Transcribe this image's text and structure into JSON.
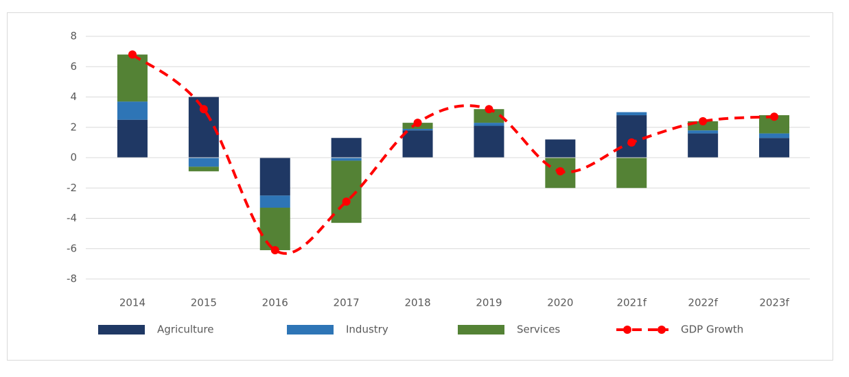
{
  "chart_data": {
    "type": "bar",
    "categories": [
      "2014",
      "2015",
      "2016",
      "2017",
      "2018",
      "2019",
      "2020",
      "2021f",
      "2022f",
      "2023f"
    ],
    "series": [
      {
        "name": "Agriculture",
        "color": "#1f3864",
        "values": [
          2.5,
          4.0,
          -2.5,
          1.3,
          1.8,
          2.1,
          1.2,
          2.8,
          1.6,
          1.3
        ]
      },
      {
        "name": "Industry",
        "color": "#2e75b6",
        "values": [
          1.2,
          -0.6,
          -0.8,
          -0.2,
          0.1,
          0.2,
          0,
          0.2,
          0.2,
          0.3
        ]
      },
      {
        "name": "Services",
        "color": "#548235",
        "values": [
          3.1,
          -0.3,
          -2.8,
          -4.1,
          0.4,
          0.9,
          -2.0,
          -2.0,
          0.6,
          1.2
        ]
      },
      {
        "name": "GDP Growth",
        "type": "line",
        "color": "#ff0000",
        "values": [
          6.8,
          3.2,
          -6.1,
          -2.9,
          2.3,
          3.2,
          -0.9,
          1.0,
          2.4,
          2.7
        ]
      }
    ],
    "stacked": true,
    "ylim": [
      -8,
      8
    ],
    "yticks": [
      -8,
      -6,
      -4,
      -2,
      0,
      2,
      4,
      6,
      8
    ],
    "grid": true,
    "legend": "bottom"
  }
}
